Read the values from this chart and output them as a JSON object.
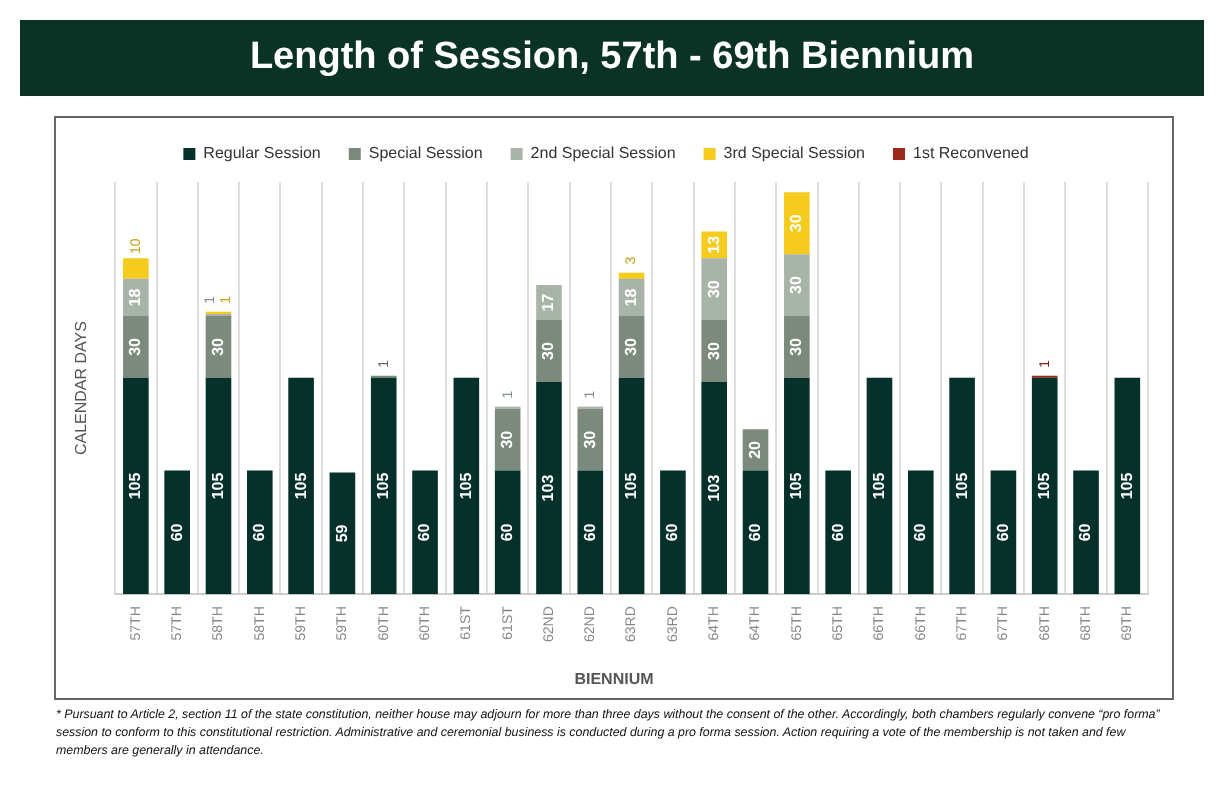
{
  "chart_data": {
    "type": "bar",
    "title": "Length of Session, 57th - 69th Biennium",
    "xlabel": "BIENNIUM",
    "ylabel": "CALENDAR DAYS",
    "categories": [
      "57TH",
      "57TH",
      "58TH",
      "58TH",
      "59TH",
      "59TH",
      "60TH",
      "60TH",
      "61ST",
      "61ST",
      "62ND",
      "62ND",
      "63RD",
      "63RD",
      "64TH",
      "64TH",
      "65TH",
      "65TH",
      "66TH",
      "66TH",
      "67TH",
      "67TH",
      "68TH",
      "68TH",
      "69TH"
    ],
    "stacked": true,
    "data_labels": true,
    "grid": "x",
    "legend": "top",
    "series": [
      {
        "name": "Regular Session",
        "color": "#06302a",
        "values": [
          105,
          60,
          105,
          60,
          105,
          59,
          105,
          60,
          105,
          60,
          103,
          60,
          105,
          60,
          103,
          60,
          105,
          60,
          105,
          60,
          105,
          60,
          105,
          60,
          105
        ]
      },
      {
        "name": "Special Session",
        "color": "#7b8a7c",
        "values": [
          30,
          null,
          30,
          null,
          null,
          null,
          1,
          null,
          null,
          30,
          30,
          30,
          30,
          null,
          30,
          20,
          30,
          null,
          null,
          null,
          null,
          null,
          null,
          null,
          null
        ]
      },
      {
        "name": "2nd Special Session",
        "color": "#a9b4a9",
        "values": [
          18,
          null,
          1,
          null,
          null,
          null,
          null,
          null,
          null,
          1,
          17,
          1,
          18,
          null,
          30,
          null,
          30,
          null,
          null,
          null,
          null,
          null,
          null,
          null,
          null
        ]
      },
      {
        "name": "3rd Special Session",
        "color": "#f5cb1d",
        "values": [
          10,
          null,
          1,
          null,
          null,
          null,
          null,
          null,
          null,
          null,
          null,
          null,
          3,
          null,
          13,
          null,
          30,
          null,
          null,
          null,
          null,
          null,
          null,
          null,
          null
        ]
      },
      {
        "name": "1st Reconvened",
        "color": "#9b2a1b",
        "values": [
          null,
          null,
          null,
          null,
          null,
          null,
          null,
          null,
          null,
          null,
          null,
          null,
          null,
          null,
          null,
          null,
          null,
          null,
          null,
          null,
          null,
          null,
          1,
          null,
          null
        ]
      }
    ],
    "annotations": [
      "*   Pursuant to Article 2, section 11 of the state constitution, neither house may adjourn for more than three days without the consent of the other. Accordingly, both chambers regularly convene “pro forma” session to conform to this constitutional restriction. Administrative and ceremonial business is conducted during a pro forma session. Action requiring a vote of the membership is not taken and few members are generally in attendance."
    ]
  }
}
